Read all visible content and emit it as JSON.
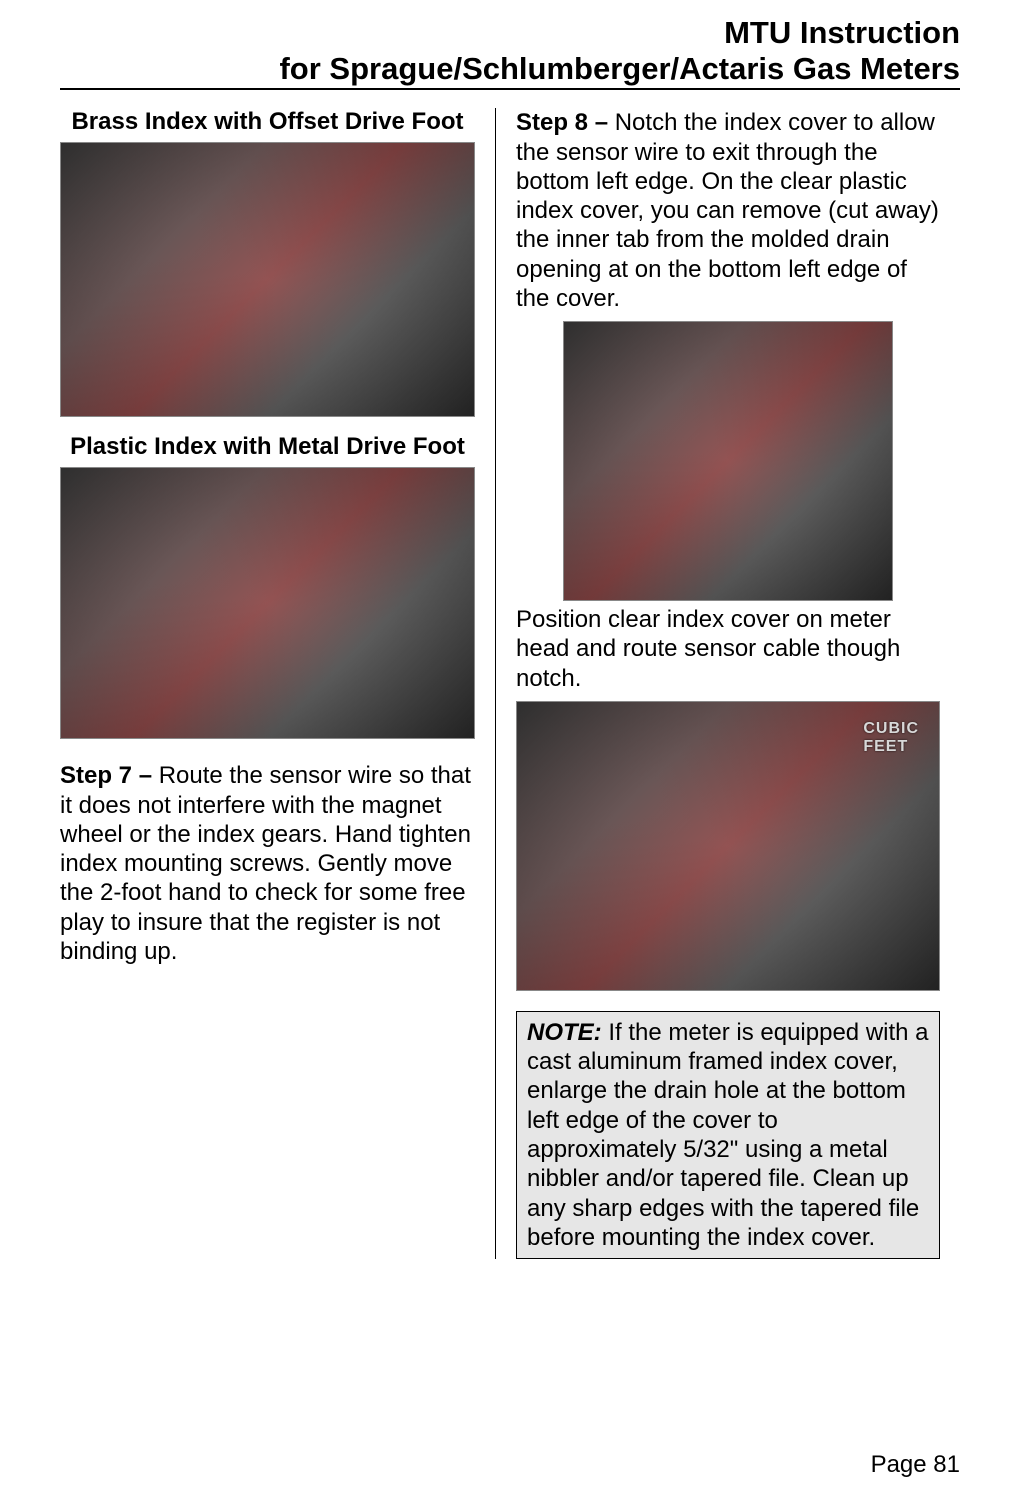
{
  "header": {
    "line1": "MTU Instruction",
    "line2": "for Sprague/Schlumberger/Actaris Gas Meters"
  },
  "left_column": {
    "caption1": "Brass Index with Offset Drive Foot",
    "caption2": "Plastic Index with Metal Drive Foot",
    "step7": {
      "label": "Step 7 – ",
      "text": "Route the sensor wire so that it does not interfere with the magnet wheel or the index gears.  Hand tighten index mounting screws.  Gently move the 2-foot hand to check for some free play to insure that the register is not binding up."
    }
  },
  "right_column": {
    "step8": {
      "label": "Step 8 – ",
      "text": "Notch the index cover to allow the sensor wire to exit through the bottom left edge.  On the clear plastic index cover, you can remove (cut away) the inner tab from the molded drain opening at on the bottom left edge of the cover."
    },
    "mid_text": "Position clear index cover on meter head and route sensor cable though notch.",
    "img4_overlay": "CUBIC\nFEET",
    "note": {
      "label": "NOTE: ",
      "text": "If the meter is equipped with a cast aluminum framed index cover, enlarge the drain hole at the bottom left edge of the cover to approximately 5/32\" using a metal nibbler and/or tapered file.  Clean up any sharp edges with the tapered file before mounting the index cover."
    }
  },
  "page_number": "Page 81",
  "images": {
    "img1": {
      "description": "brass-index-offset-drive-foot-photo"
    },
    "img2": {
      "description": "plastic-index-metal-drive-foot-photo"
    },
    "img3": {
      "description": "notching-index-cover-with-pliers-photo"
    },
    "img4": {
      "description": "index-cover-mounted-cubic-feet-photo"
    }
  },
  "colors": {
    "text": "#000000",
    "background": "#ffffff",
    "note_background": "#e6e6e6",
    "border": "#000000"
  },
  "typography": {
    "header_fontsize": 31,
    "body_fontsize": 24,
    "caption_fontsize": 24,
    "font_family": "Arial"
  }
}
